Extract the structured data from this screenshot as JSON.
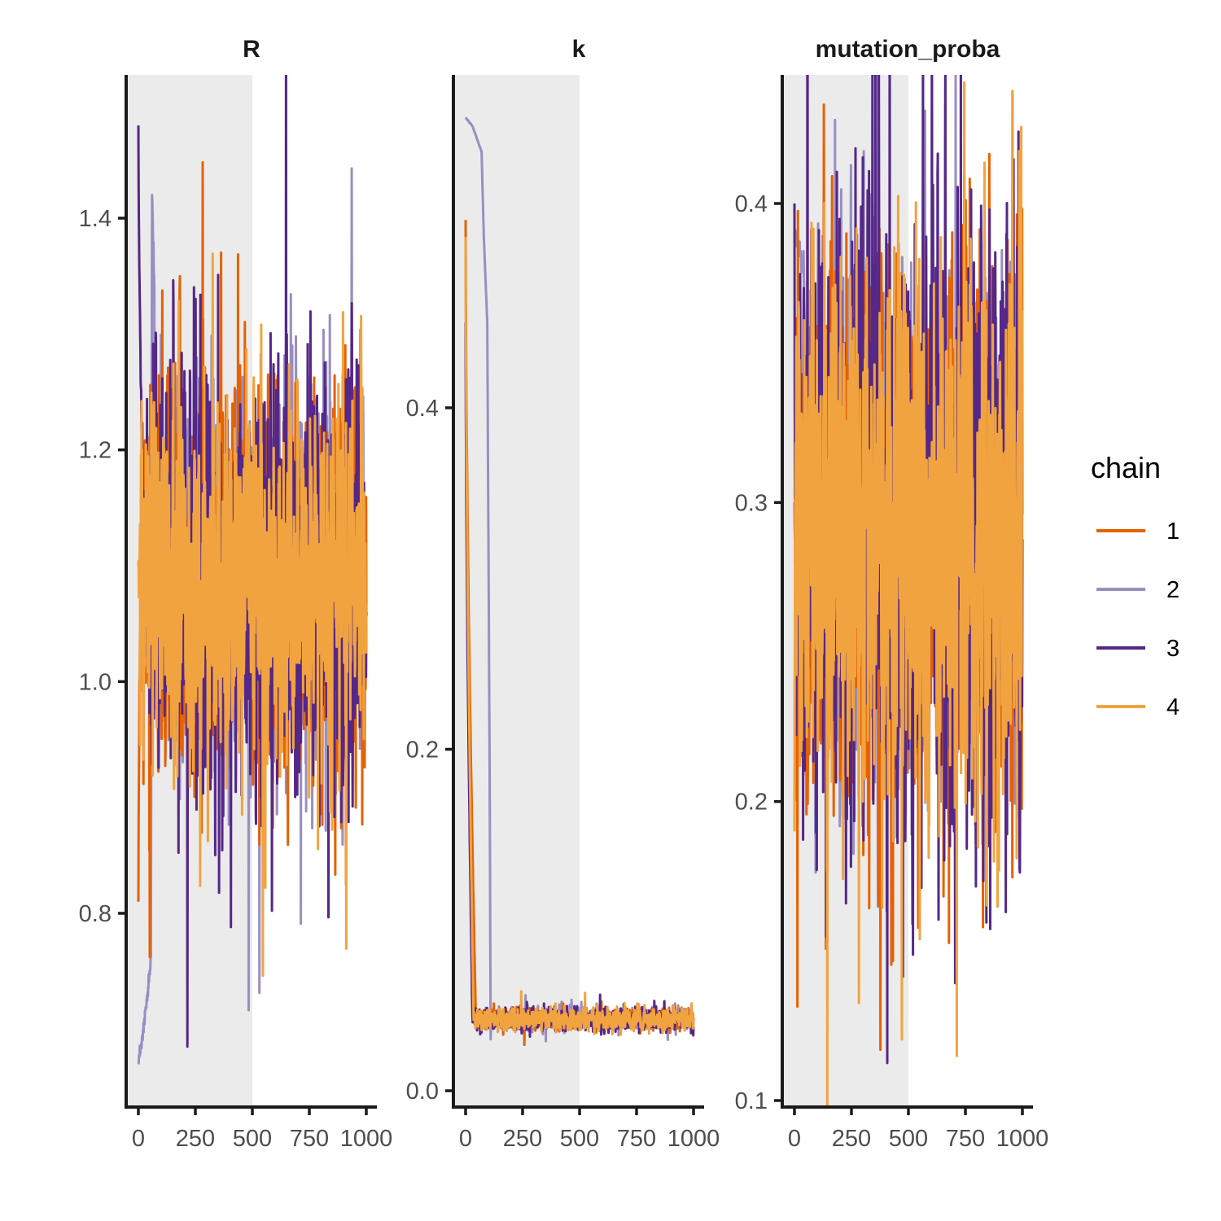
{
  "chart_data": {
    "type": "line",
    "description_kind": "MCMC trace plot",
    "shaded_region": {
      "x": [
        0,
        500
      ],
      "color": "#ebebeb"
    },
    "colors": {
      "1": "#e66101",
      "2": "#998ec3",
      "3": "#542788",
      "4": "#f1a340"
    },
    "legend": {
      "title": "chain",
      "position": "right",
      "entries": [
        "1",
        "2",
        "3",
        "4"
      ]
    },
    "panels": [
      {
        "title": "R",
        "xlim": [
          0,
          1000
        ],
        "ylim": [
          0.645,
          1.525
        ],
        "xticks": [
          0,
          250,
          500,
          750,
          1000
        ],
        "xtick_labels": [
          "0",
          "250",
          "500",
          "750",
          "1000"
        ],
        "yticks": [
          0.8,
          1.0,
          1.2,
          1.4
        ],
        "ytick_labels": [
          "0.8",
          "1.0",
          "1.2",
          "1.4"
        ],
        "series": [
          {
            "chain": "1",
            "start": 0.81,
            "burn_to": 10,
            "center": 1.085,
            "spread": 0.08,
            "seed": 11
          },
          {
            "chain": "2",
            "start": 0.67,
            "burn_to": 70,
            "center": 1.085,
            "spread": 0.07,
            "seed": 23,
            "burn_path": [
              [
                0,
                0.67
              ],
              [
                15,
                0.69
              ],
              [
                35,
                0.72
              ],
              [
                55,
                0.76
              ],
              [
                60,
                1.42
              ],
              [
                75,
                1.3
              ],
              [
                90,
                1.2
              ]
            ]
          },
          {
            "chain": "3",
            "start": 1.48,
            "burn_to": 30,
            "center": 1.085,
            "spread": 0.085,
            "seed": 37
          },
          {
            "chain": "4",
            "start": 1.1,
            "burn_to": 5,
            "center": 1.085,
            "spread": 0.07,
            "seed": 53
          }
        ]
      },
      {
        "title": "k",
        "xlim": [
          0,
          1000
        ],
        "ylim": [
          -0.01,
          0.595
        ],
        "xticks": [
          0,
          250,
          500,
          750,
          1000
        ],
        "xtick_labels": [
          "0",
          "250",
          "500",
          "750",
          "1000"
        ],
        "yticks": [
          0.0,
          0.2,
          0.4
        ],
        "ytick_labels": [
          "0.0",
          "0.2",
          "0.4"
        ],
        "series": [
          {
            "chain": "1",
            "start": 0.51,
            "burn_to": 45,
            "center": 0.042,
            "spread": 0.003,
            "seed": 61
          },
          {
            "chain": "2",
            "start": 0.57,
            "burn_to": 110,
            "center": 0.042,
            "spread": 0.003,
            "seed": 71,
            "burn_path": [
              [
                0,
                0.57
              ],
              [
                30,
                0.565
              ],
              [
                70,
                0.55
              ],
              [
                80,
                0.5
              ],
              [
                95,
                0.45
              ],
              [
                105,
                0.2
              ],
              [
                110,
                0.03
              ]
            ]
          },
          {
            "chain": "3",
            "start": 0.45,
            "burn_to": 30,
            "center": 0.042,
            "spread": 0.003,
            "seed": 83
          },
          {
            "chain": "4",
            "start": 0.5,
            "burn_to": 35,
            "center": 0.042,
            "spread": 0.003,
            "seed": 97
          }
        ]
      },
      {
        "title": "mutation_proba",
        "xlim": [
          0,
          1000
        ],
        "ylim": [
          0.095,
          0.44
        ],
        "xticks": [
          0,
          250,
          500,
          750,
          1000
        ],
        "xtick_labels": [
          "0",
          "250",
          "500",
          "750",
          "1000"
        ],
        "yticks": [
          0.1,
          0.2,
          0.3,
          0.4
        ],
        "ytick_labels": [
          "0.1",
          "0.2",
          "0.3",
          "0.4"
        ],
        "series": [
          {
            "chain": "1",
            "start": 0.3,
            "burn_to": 3,
            "center": 0.29,
            "spread": 0.045,
            "seed": 101
          },
          {
            "chain": "2",
            "start": 0.39,
            "burn_to": 60,
            "center": 0.29,
            "spread": 0.04,
            "seed": 113,
            "burn_path": [
              [
                0,
                0.39
              ],
              [
                20,
                0.385
              ],
              [
                40,
                0.38
              ],
              [
                60,
                0.3
              ]
            ]
          },
          {
            "chain": "3",
            "start": 0.4,
            "burn_to": 3,
            "center": 0.29,
            "spread": 0.05,
            "seed": 127
          },
          {
            "chain": "4",
            "start": 0.19,
            "burn_to": 3,
            "center": 0.29,
            "spread": 0.042,
            "seed": 139
          }
        ]
      }
    ]
  }
}
